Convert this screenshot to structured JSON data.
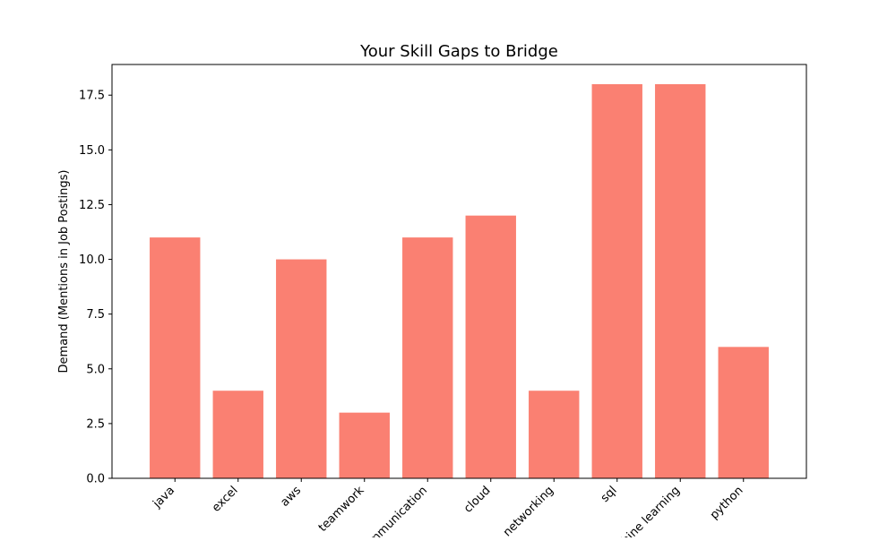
{
  "chart_data": {
    "type": "bar",
    "title": "Your Skill Gaps to Bridge",
    "xlabel": "",
    "ylabel": "Demand (Mentions in Job Postings)",
    "categories": [
      "java",
      "excel",
      "aws",
      "teamwork",
      "communication",
      "cloud",
      "networking",
      "sql",
      "machine learning",
      "python"
    ],
    "values": [
      11,
      4,
      10,
      3,
      11,
      12,
      4,
      18,
      18,
      6
    ],
    "ylim": [
      0,
      18.9
    ],
    "yticks": [
      0.0,
      2.5,
      5.0,
      7.5,
      10.0,
      12.5,
      15.0,
      17.5
    ],
    "ytick_labels": [
      "0.0",
      "2.5",
      "5.0",
      "7.5",
      "10.0",
      "12.5",
      "15.0",
      "17.5"
    ],
    "bar_color": "#fa8072",
    "grid": false,
    "legend": "none"
  }
}
